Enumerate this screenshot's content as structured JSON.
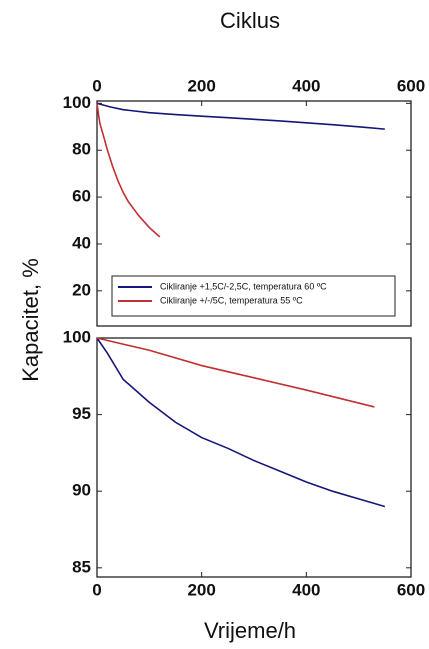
{
  "chart_data": [
    {
      "type": "line",
      "xlabel": "Ciklus",
      "ylabel": "Kapacitet, %",
      "xlim": [
        0,
        600
      ],
      "xticks": [
        0,
        200,
        400,
        600
      ],
      "ylim": [
        5,
        101
      ],
      "yticks": [
        20,
        40,
        60,
        80,
        100
      ],
      "legend": "bottom",
      "series": [
        {
          "name": "Cikliranje +1,5C/-2,5C, temperatura 60 ºC",
          "color": "#16167a",
          "x": [
            0,
            25,
            50,
            100,
            150,
            200,
            250,
            300,
            350,
            400,
            450,
            500,
            550
          ],
          "values": [
            100,
            98.5,
            97.3,
            96,
            95.2,
            94.5,
            93.9,
            93.2,
            92.5,
            91.7,
            90.9,
            90,
            89
          ]
        },
        {
          "name": "Cikliranje +/-/5C, temperatura 55 ºC",
          "color": "#c23030",
          "x": [
            0,
            3,
            6,
            10,
            15,
            20,
            30,
            40,
            50,
            60,
            70,
            80,
            90,
            100,
            110,
            120
          ],
          "values": [
            100,
            95,
            91,
            88,
            84,
            80,
            73,
            67,
            62,
            58,
            55,
            52,
            49.5,
            47,
            45,
            43
          ]
        }
      ]
    },
    {
      "type": "line",
      "xlabel": "Vrijeme/h",
      "xlim": [
        0,
        600
      ],
      "xticks": [
        0,
        200,
        400,
        600
      ],
      "ylim": [
        84.4,
        100
      ],
      "yticks": [
        85,
        90,
        95,
        100
      ],
      "series": [
        {
          "color": "#16167a",
          "x": [
            0,
            20,
            50,
            100,
            150,
            200,
            250,
            300,
            350,
            400,
            450,
            500,
            550
          ],
          "values": [
            100,
            99,
            97.3,
            95.8,
            94.5,
            93.5,
            92.8,
            92,
            91.3,
            90.6,
            90,
            89.5,
            89
          ]
        },
        {
          "color": "#c23030",
          "x": [
            0,
            100,
            200,
            300,
            400,
            530
          ],
          "values": [
            100,
            99.2,
            98.2,
            97.4,
            96.6,
            95.5
          ]
        }
      ]
    }
  ]
}
